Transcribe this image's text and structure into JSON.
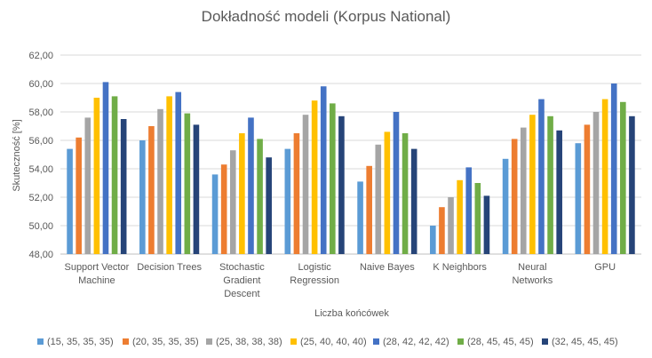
{
  "chart_data": {
    "type": "bar",
    "title": "Dokładność modeli (Korpus National)",
    "xlabel": "Liczba końcówek",
    "ylabel": "Skuteczność [%]",
    "ylim": [
      48,
      62
    ],
    "yticks": [
      "48,00",
      "50,00",
      "52,00",
      "54,00",
      "56,00",
      "58,00",
      "60,00",
      "62,00"
    ],
    "grid": true,
    "legend_position": "bottom",
    "categories": [
      [
        "Support Vector",
        "Machine"
      ],
      [
        "Decision Trees"
      ],
      [
        "Stochastic",
        "Gradient",
        "Descent"
      ],
      [
        "Logistic",
        "Regression"
      ],
      [
        "Naive Bayes"
      ],
      [
        "K Neighbors"
      ],
      [
        "Neural",
        "Networks"
      ],
      [
        "GPU"
      ]
    ],
    "series": [
      {
        "name": "(15, 35, 35, 35)",
        "color": "#5B9BD5",
        "values": [
          55.4,
          56.0,
          53.6,
          55.4,
          53.1,
          50.0,
          54.7,
          55.8
        ]
      },
      {
        "name": "(20, 35, 35, 35)",
        "color": "#ED7D31",
        "values": [
          56.2,
          57.0,
          54.3,
          56.5,
          54.2,
          51.3,
          56.1,
          57.1
        ]
      },
      {
        "name": "(25, 38, 38, 38)",
        "color": "#A5A5A5",
        "values": [
          57.6,
          58.2,
          55.3,
          57.8,
          55.7,
          52.0,
          56.9,
          58.0
        ]
      },
      {
        "name": "(25, 40, 40, 40)",
        "color": "#FFC000",
        "values": [
          59.0,
          59.1,
          56.5,
          58.8,
          56.6,
          53.2,
          57.8,
          58.9
        ]
      },
      {
        "name": "(28, 42, 42, 42)",
        "color": "#4472C4",
        "values": [
          60.1,
          59.4,
          57.6,
          59.8,
          58.0,
          54.1,
          58.9,
          60.0
        ]
      },
      {
        "name": "(28, 45, 45, 45)",
        "color": "#70AD47",
        "values": [
          59.1,
          57.9,
          56.1,
          58.6,
          56.5,
          53.0,
          57.7,
          58.7
        ]
      },
      {
        "name": "(32, 45, 45, 45)",
        "color": "#264478",
        "values": [
          57.5,
          57.1,
          54.8,
          57.7,
          55.4,
          52.1,
          56.7,
          57.7
        ]
      }
    ]
  }
}
